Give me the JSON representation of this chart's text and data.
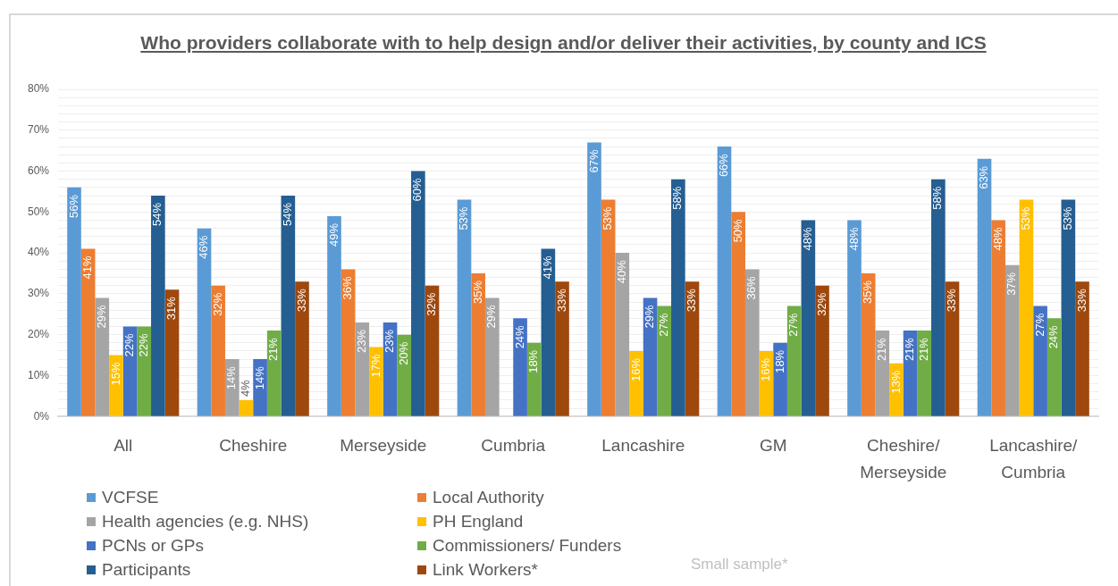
{
  "chart_data": {
    "type": "bar",
    "title": "Who providers collaborate with to help design and/or deliver their activities, by county and ICS",
    "categories": [
      "All",
      "Cheshire",
      "Merseyside",
      "Cumbria",
      "Lancashire",
      "GM",
      "Cheshire/ Merseyside",
      "Lancashire/ Cumbria"
    ],
    "series": [
      {
        "name": "VCFSE",
        "color": "#5b9bd5",
        "values": [
          56,
          46,
          49,
          53,
          67,
          66,
          48,
          63
        ],
        "value_labels": [
          "56%",
          "46%",
          "49%",
          "53%",
          "67%",
          "66%",
          "48%",
          "63%"
        ]
      },
      {
        "name": "Local Authority",
        "color": "#ed7d31",
        "values": [
          41,
          32,
          36,
          35,
          53,
          50,
          35,
          48
        ],
        "value_labels": [
          "41%",
          "32%",
          "36%",
          "35%",
          "53%",
          "50%",
          "35%",
          "48%"
        ]
      },
      {
        "name": "Health agencies (e.g. NHS)",
        "color": "#a5a5a5",
        "values": [
          29,
          14,
          23,
          29,
          40,
          36,
          21,
          37
        ],
        "value_labels": [
          "29%",
          "14%",
          "23%",
          "29%",
          "40%",
          "36%",
          "21%",
          "37%"
        ]
      },
      {
        "name": "PH England",
        "color": "#ffc000",
        "values": [
          15,
          4,
          17,
          0,
          16,
          16,
          13,
          53
        ],
        "value_labels": [
          "15%",
          "4%",
          "17%",
          null,
          "16%",
          "16%",
          "13%",
          "53%"
        ]
      },
      {
        "name": "PCNs or GPs",
        "color": "#4472c4",
        "values": [
          22,
          14,
          23,
          24,
          29,
          18,
          21,
          27
        ],
        "value_labels": [
          "22%",
          "14%",
          "23%",
          "24%",
          "29%",
          "18%",
          "21%",
          "27%"
        ]
      },
      {
        "name": "Commissioners/ Funders",
        "color": "#70ad47",
        "values": [
          22,
          21,
          20,
          18,
          27,
          27,
          21,
          24
        ],
        "value_labels": [
          "22%",
          "21%",
          "20%",
          "18%",
          "27%",
          "27%",
          "21%",
          "24%"
        ]
      },
      {
        "name": "Participants",
        "color": "#255e91",
        "values": [
          54,
          54,
          60,
          41,
          58,
          48,
          58,
          53
        ],
        "value_labels": [
          "54%",
          "54%",
          "60%",
          "41%",
          "58%",
          "48%",
          "58%",
          "53%"
        ]
      },
      {
        "name": "Link Workers*",
        "color": "#9e480e",
        "values": [
          31,
          33,
          32,
          33,
          33,
          32,
          33,
          33
        ],
        "value_labels": [
          "31%",
          "33%",
          "32%",
          "33%",
          "33%",
          "32%",
          "33%",
          "33%"
        ]
      }
    ],
    "ylim": [
      0,
      80
    ],
    "yticks": [
      {
        "value": 0,
        "label": "0%"
      },
      {
        "value": 2,
        "label": null
      },
      {
        "value": 4,
        "label": null
      },
      {
        "value": 6,
        "label": null
      },
      {
        "value": 8,
        "label": null
      },
      {
        "value": 10,
        "label": "10%"
      },
      {
        "value": 12,
        "label": null
      },
      {
        "value": 14,
        "label": null
      },
      {
        "value": 16,
        "label": null
      },
      {
        "value": 18,
        "label": null
      },
      {
        "value": 20,
        "label": "20%"
      },
      {
        "value": 22,
        "label": null
      },
      {
        "value": 24,
        "label": null
      },
      {
        "value": 26,
        "label": null
      },
      {
        "value": 28,
        "label": null
      },
      {
        "value": 30,
        "label": "30%"
      },
      {
        "value": 32,
        "label": null
      },
      {
        "value": 34,
        "label": null
      },
      {
        "value": 36,
        "label": null
      },
      {
        "value": 38,
        "label": null
      },
      {
        "value": 40,
        "label": "40%"
      },
      {
        "value": 42,
        "label": null
      },
      {
        "value": 44,
        "label": null
      },
      {
        "value": 46,
        "label": null
      },
      {
        "value": 48,
        "label": null
      },
      {
        "value": 50,
        "label": "50%"
      },
      {
        "value": 52,
        "label": null
      },
      {
        "value": 54,
        "label": null
      },
      {
        "value": 56,
        "label": null
      },
      {
        "value": 58,
        "label": null
      },
      {
        "value": 60,
        "label": "60%"
      },
      {
        "value": 62,
        "label": null
      },
      {
        "value": 64,
        "label": null
      },
      {
        "value": 66,
        "label": null
      },
      {
        "value": 68,
        "label": null
      },
      {
        "value": 70,
        "label": "70%"
      },
      {
        "value": 72,
        "label": null
      },
      {
        "value": 74,
        "label": null
      },
      {
        "value": 76,
        "label": null
      },
      {
        "value": 78,
        "label": null
      },
      {
        "value": 80,
        "label": "80%"
      }
    ],
    "grid": "y",
    "legend": "bottom",
    "annotations": [
      "Small sample*"
    ]
  }
}
